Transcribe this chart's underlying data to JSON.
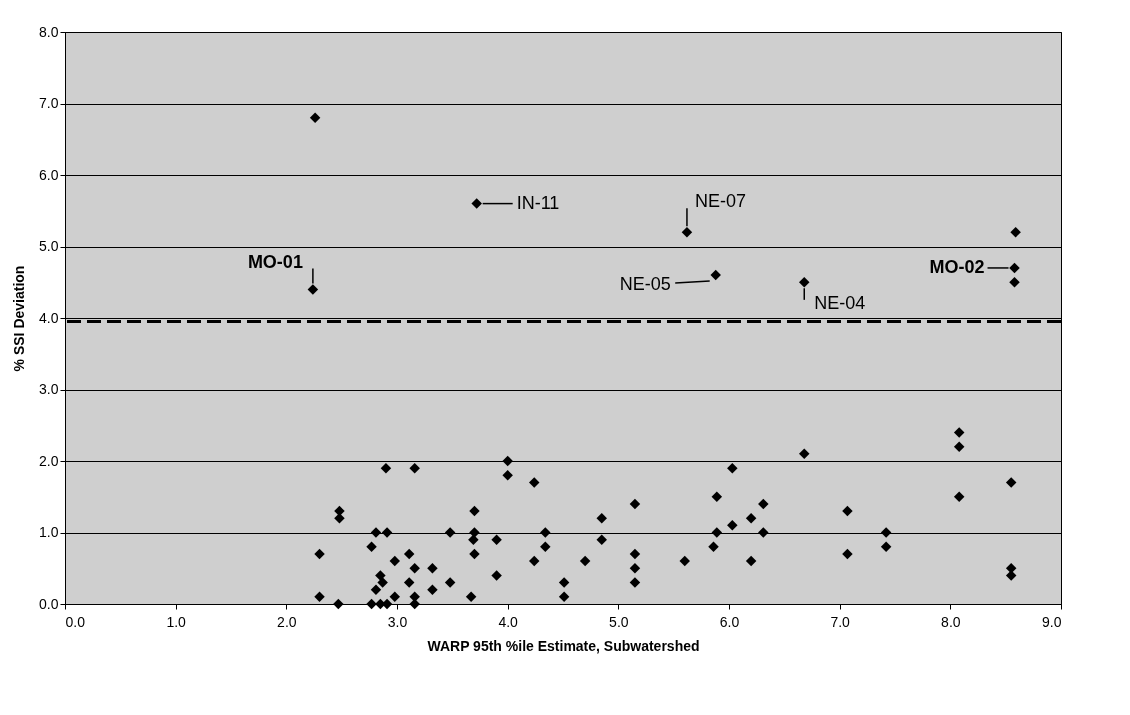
{
  "chart_data": {
    "type": "scatter",
    "xlabel": "WARP 95th %ile Estimate, Subwatershed",
    "ylabel": "% SSI Deviation",
    "series": [
      {
        "color": "#000000",
        "x": [
          2.9,
          3.16,
          2.48,
          2.48,
          3.7,
          2.81,
          2.91,
          3.48,
          3.7,
          3.69,
          2.77,
          2.3,
          3.7,
          2.98,
          3.11,
          3.16,
          3.32,
          2.85,
          2.87,
          2.81,
          3.11,
          3.48,
          3.32,
          2.3,
          2.98,
          3.16,
          3.67,
          2.47,
          2.77,
          2.85,
          2.91,
          3.16,
          4.0,
          4.0,
          4.24,
          5.15,
          4.85,
          3.9,
          4.34,
          4.34,
          4.85,
          4.24,
          4.7,
          3.9,
          5.15,
          5.15,
          5.15,
          4.51,
          4.51,
          5.6,
          5.89,
          5.89,
          5.86,
          6.03,
          6.03,
          6.2,
          6.31,
          6.31,
          6.2,
          6.68,
          7.07,
          7.07,
          7.42,
          7.42,
          8.08,
          8.08,
          8.08,
          8.55,
          8.55,
          8.55,
          2.26,
          2.24,
          3.72,
          5.62,
          5.88,
          6.68,
          8.59,
          8.58,
          8.58
        ],
        "values": [
          1.9,
          1.9,
          1.3,
          1.2,
          1.3,
          1.0,
          1.0,
          1.0,
          1.0,
          0.9,
          0.8,
          0.7,
          0.7,
          0.6,
          0.7,
          0.5,
          0.5,
          0.4,
          0.3,
          0.2,
          0.3,
          0.3,
          0.2,
          0.1,
          0.1,
          0.1,
          0.1,
          0.0,
          0.0,
          0.0,
          0.0,
          0.0,
          2.0,
          1.8,
          1.7,
          1.4,
          1.2,
          0.9,
          1.0,
          0.8,
          0.9,
          0.6,
          0.6,
          0.4,
          0.7,
          0.5,
          0.3,
          0.3,
          0.1,
          0.6,
          1.5,
          1.0,
          0.8,
          1.9,
          1.1,
          1.2,
          1.4,
          1.0,
          0.6,
          2.1,
          1.3,
          0.7,
          1.0,
          0.8,
          2.4,
          2.2,
          1.5,
          1.7,
          0.5,
          0.4,
          6.8,
          4.4,
          5.6,
          5.2,
          4.6,
          4.5,
          5.2,
          4.7,
          4.5
        ]
      }
    ],
    "marker": "diamond",
    "xlim": [
      0,
      9
    ],
    "xticks": [
      {
        "value": 0,
        "label": "0.0"
      },
      {
        "value": 1,
        "label": "1.0"
      },
      {
        "value": 2,
        "label": "2.0"
      },
      {
        "value": 3,
        "label": "3.0"
      },
      {
        "value": 4,
        "label": "4.0"
      },
      {
        "value": 5,
        "label": "5.0"
      },
      {
        "value": 6,
        "label": "6.0"
      },
      {
        "value": 7,
        "label": "7.0"
      },
      {
        "value": 8,
        "label": "8.0"
      },
      {
        "value": 9,
        "label": "9.0"
      }
    ],
    "ylim": [
      0,
      8
    ],
    "yticks": [
      {
        "value": 0,
        "label": "0.0"
      },
      {
        "value": 1,
        "label": "1.0"
      },
      {
        "value": 2,
        "label": "2.0"
      },
      {
        "value": 3,
        "label": "3.0"
      },
      {
        "value": 4,
        "label": "4.0"
      },
      {
        "value": 5,
        "label": "5.0"
      },
      {
        "value": 6,
        "label": "6.0"
      },
      {
        "value": 7,
        "label": "7.0"
      },
      {
        "value": 8,
        "label": "8.0"
      }
    ],
    "grid": "y",
    "ref_lines": [
      {
        "axis": "y",
        "value": 3.95,
        "color": "#000000",
        "line_style": "dashed"
      }
    ],
    "annotations": [
      {
        "text": "MO-01",
        "x": 2.24,
        "y": 4.4
      },
      {
        "text": "IN-11",
        "x": 3.72,
        "y": 5.6
      },
      {
        "text": "NE-07",
        "x": 5.62,
        "y": 5.2
      },
      {
        "text": "NE-05",
        "x": 5.88,
        "y": 4.6
      },
      {
        "text": "NE-04",
        "x": 6.68,
        "y": 4.5
      },
      {
        "text": "MO-02",
        "x": 8.58,
        "y": 4.7
      }
    ]
  }
}
